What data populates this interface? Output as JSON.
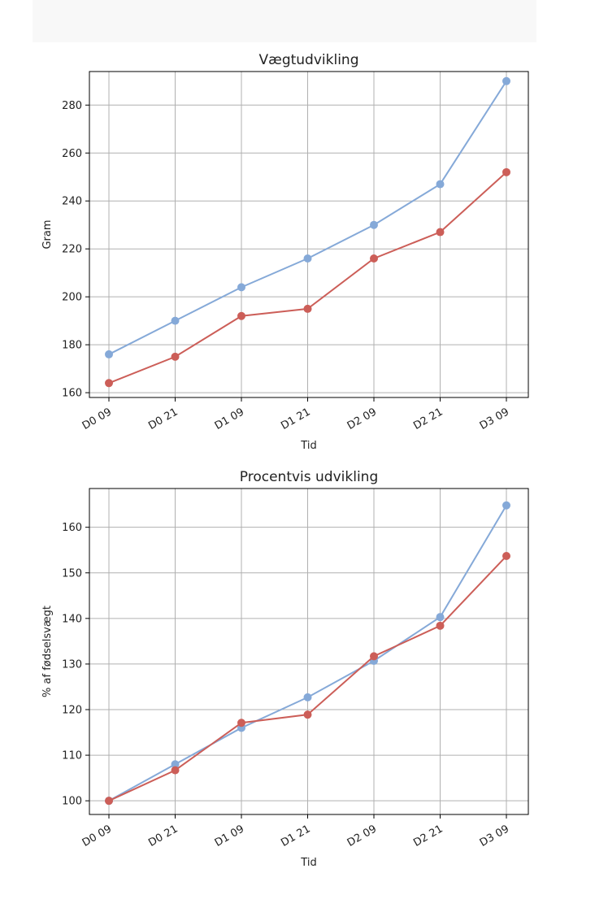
{
  "colors": {
    "series_blue": "#85a9d8",
    "series_red": "#cc5e58",
    "grid": "#b0b0b0",
    "axis": "#000000"
  },
  "chart_data": [
    {
      "type": "line",
      "title": "Vægtudvikling",
      "xlabel": "Tid",
      "ylabel": "Gram",
      "categories": [
        "D0 09",
        "D0 21",
        "D1 09",
        "D1 21",
        "D2 09",
        "D2 21",
        "D3 09"
      ],
      "ylim": [
        158,
        294
      ],
      "yticks": [
        160,
        180,
        200,
        220,
        240,
        260,
        280
      ],
      "grid": true,
      "series": [
        {
          "values": [
            176,
            190,
            204,
            216,
            230,
            247,
            290
          ],
          "color": "#85a9d8"
        },
        {
          "values": [
            164,
            175,
            192,
            195,
            216,
            227,
            252
          ],
          "color": "#cc5e58"
        }
      ]
    },
    {
      "type": "line",
      "title": "Procentvis udvikling",
      "xlabel": "Tid",
      "ylabel": "% af fødselsvægt",
      "categories": [
        "D0 09",
        "D0 21",
        "D1 09",
        "D1 21",
        "D2 09",
        "D2 21",
        "D3 09"
      ],
      "ylim": [
        97,
        168.5
      ],
      "yticks": [
        100,
        110,
        120,
        130,
        140,
        150,
        160
      ],
      "grid": true,
      "series": [
        {
          "values": [
            100,
            108,
            116,
            122.7,
            130.7,
            140.3,
            164.8
          ],
          "color": "#85a9d8"
        },
        {
          "values": [
            100,
            106.7,
            117.1,
            118.9,
            131.7,
            138.4,
            153.7
          ],
          "color": "#cc5e58"
        }
      ]
    }
  ]
}
